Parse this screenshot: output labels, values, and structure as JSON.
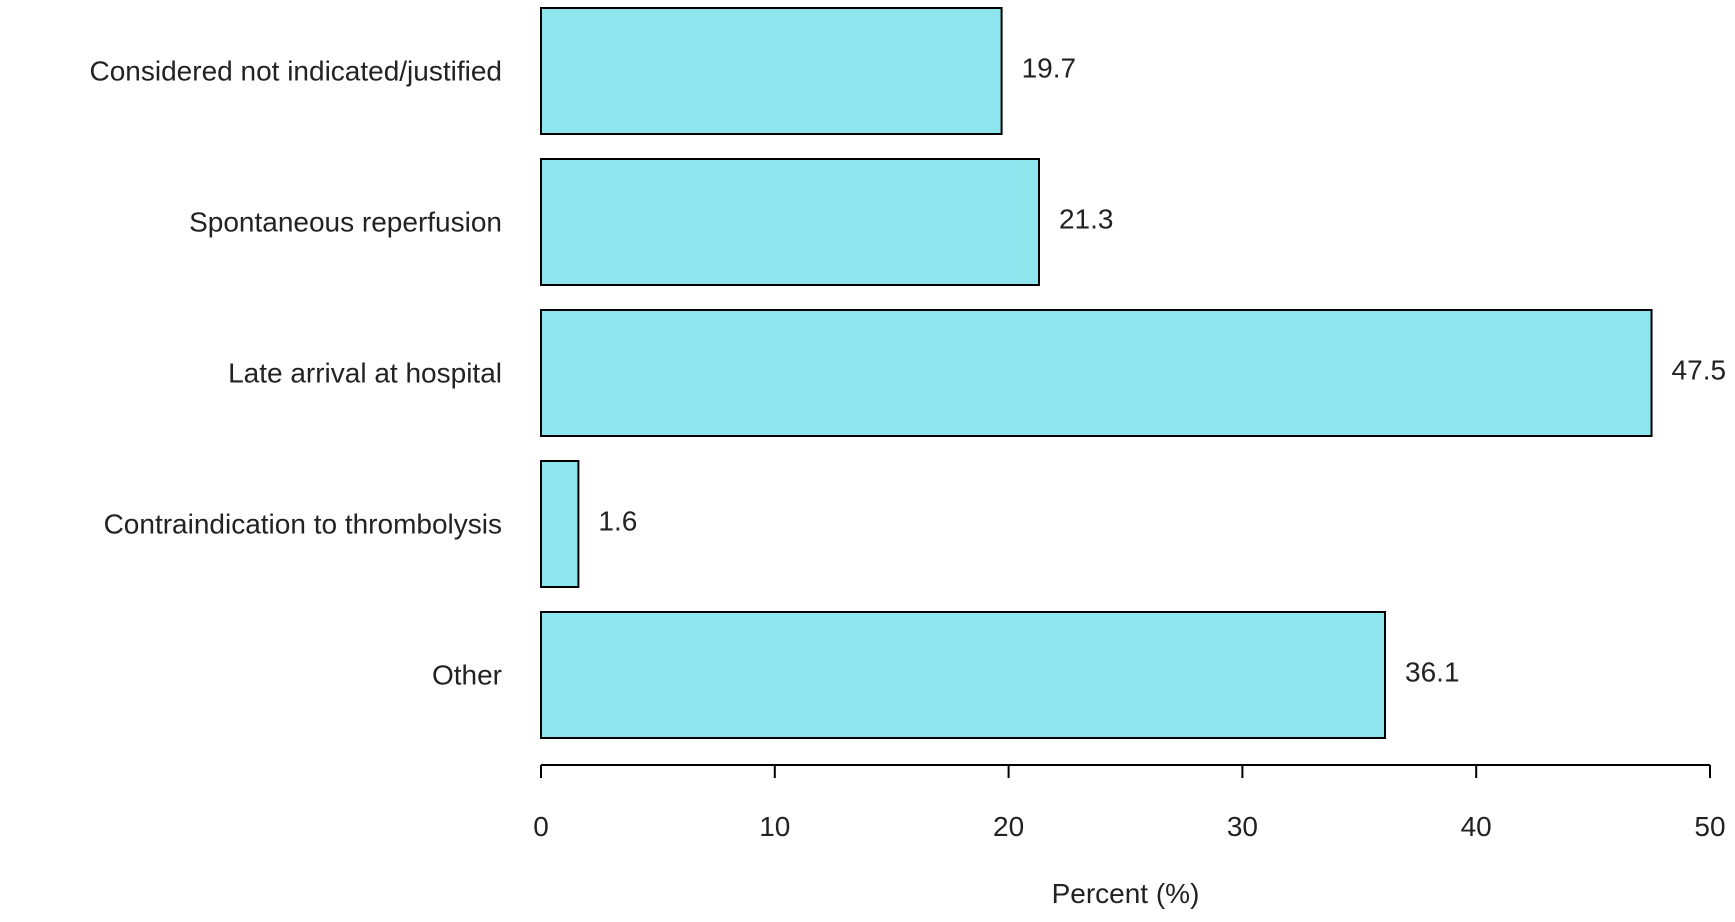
{
  "chart_data": {
    "type": "bar",
    "orientation": "horizontal",
    "categories": [
      "Considered not indicated/justified",
      "Spontaneous reperfusion",
      "Late arrival at hospital",
      "Contraindication to thrombolysis",
      "Other"
    ],
    "values": [
      19.7,
      21.3,
      47.5,
      1.6,
      36.1
    ],
    "value_labels": [
      "19.7",
      "21.3",
      "47.5",
      "1.6",
      "36.1"
    ],
    "xlabel": "Percent (%)",
    "ylabel": "",
    "title": "",
    "xlim": [
      0,
      50
    ],
    "xticks": [
      0,
      10,
      20,
      30,
      40,
      50
    ],
    "xtick_labels": [
      "0",
      "10",
      "20",
      "30",
      "40",
      "50"
    ],
    "grid": false,
    "bar_color": "#8ee5ee",
    "bar_edge_color": "#000000"
  }
}
